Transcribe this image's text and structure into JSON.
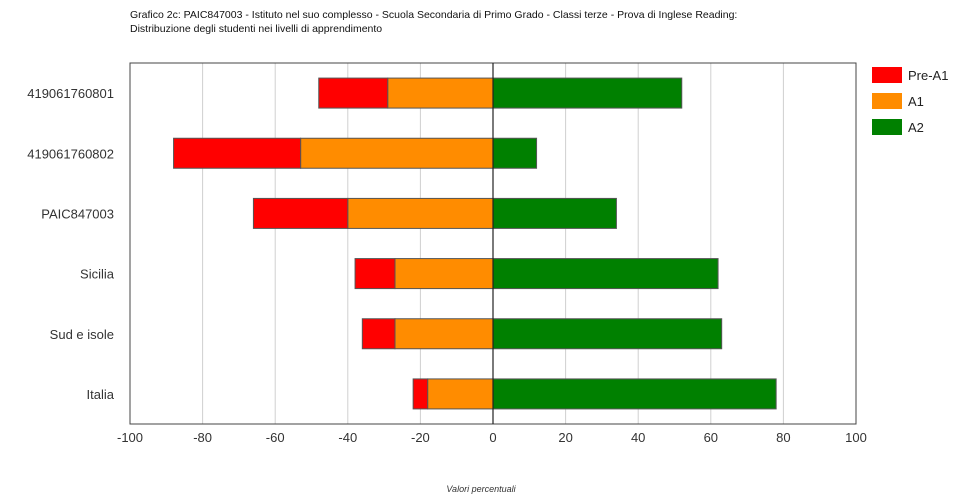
{
  "title_lines": [
    "Grafico 2c: PAIC847003 - Istituto nel suo complesso - Scuola Secondaria di Primo Grado - Classi terze - Prova di Inglese Reading:",
    "Distribuzione degli studenti nei livelli di apprendimento"
  ],
  "chart_data": {
    "type": "bar",
    "orientation": "horizontal",
    "stacked": "diverging",
    "title": "Grafico 2c: PAIC847003 - Istituto nel suo complesso - Scuola Secondaria di Primo Grado - Classi terze - Prova di Inglese Reading: Distribuzione degli studenti nei livelli di apprendimento",
    "xlabel": "Valori percentuali",
    "ylabel": "",
    "xlim": [
      -100,
      100
    ],
    "xticks": [
      -100,
      -80,
      -60,
      -40,
      -20,
      0,
      20,
      40,
      60,
      80,
      100
    ],
    "grid": true,
    "legend_position": "right",
    "categories": [
      "419061760801",
      "419061760802",
      "PAIC847003",
      "Sicilia",
      "Sud e isole",
      "Italia"
    ],
    "series": [
      {
        "name": "Pre-A1",
        "color": "#ff0000",
        "values": [
          -19,
          -35,
          -26,
          -11,
          -9,
          -4
        ]
      },
      {
        "name": "A1",
        "color": "#ff8c00",
        "values": [
          -29,
          -53,
          -40,
          -27,
          -27,
          -18
        ]
      },
      {
        "name": "A2",
        "color": "#008000",
        "values": [
          52,
          12,
          34,
          62,
          63,
          78
        ]
      }
    ]
  }
}
